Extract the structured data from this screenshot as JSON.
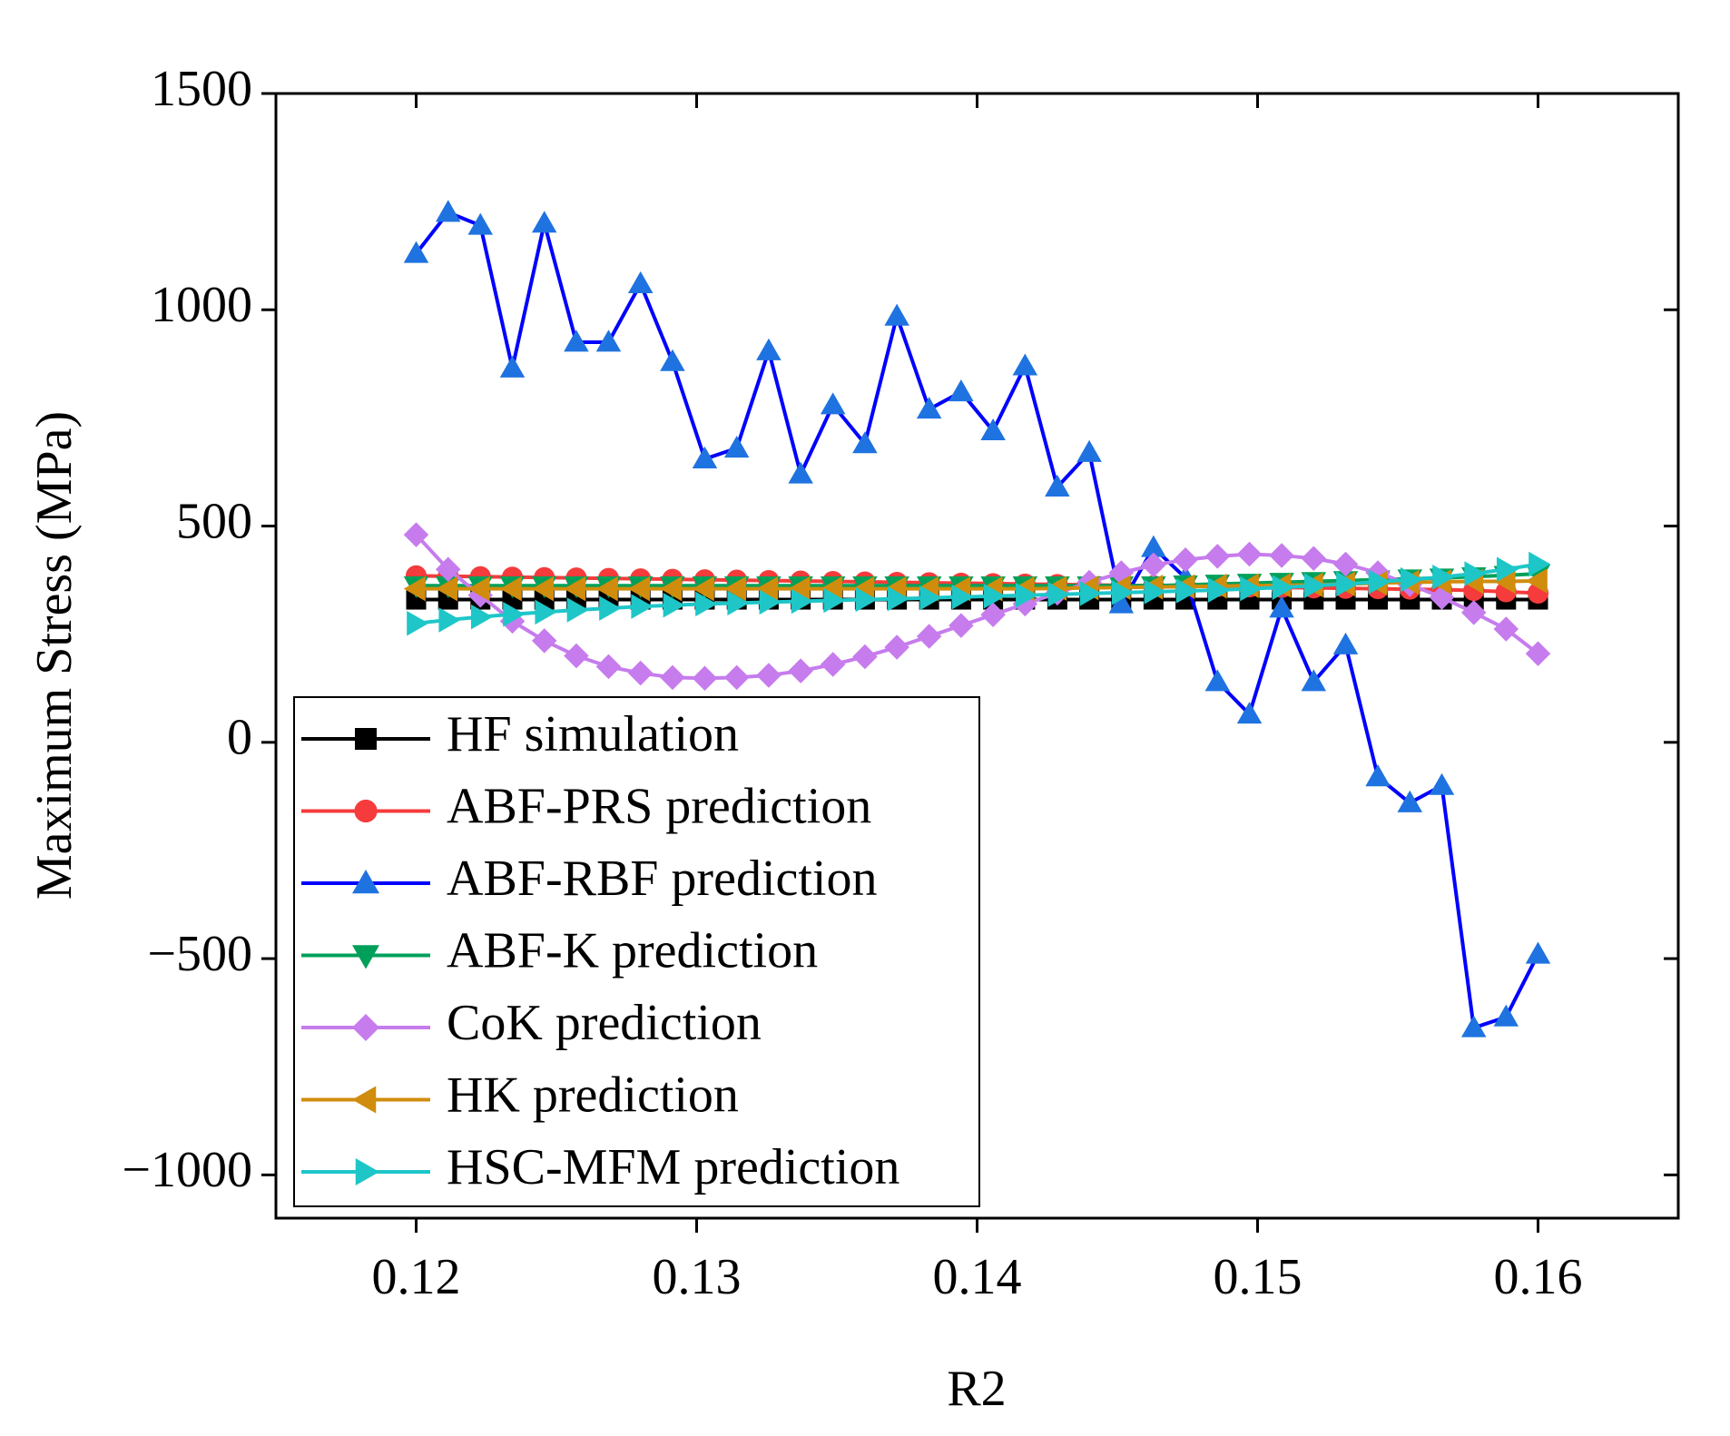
{
  "chart_data": {
    "type": "line",
    "x_label": "R2",
    "y_label": "Maximum Stress (MPa)",
    "xlim": [
      0.115,
      0.165
    ],
    "ylim": [
      -1100,
      1500
    ],
    "xticks": [
      0.12,
      0.13,
      0.14,
      0.15,
      0.16
    ],
    "yticks": [
      {
        "value": -1000,
        "label": "−1000"
      },
      {
        "value": -500,
        "label": "−500"
      },
      0,
      500,
      1000,
      1500
    ],
    "legend": "lower left",
    "x": [
      0.12,
      0.12114,
      0.12229,
      0.12343,
      0.12457,
      0.12571,
      0.12686,
      0.128,
      0.12914,
      0.13029,
      0.13143,
      0.13257,
      0.13371,
      0.13486,
      0.136,
      0.13714,
      0.13829,
      0.13943,
      0.14057,
      0.14171,
      0.14286,
      0.144,
      0.14514,
      0.14629,
      0.14743,
      0.14857,
      0.14971,
      0.15086,
      0.152,
      0.15314,
      0.15429,
      0.15543,
      0.15657,
      0.15771,
      0.15886,
      0.16
    ],
    "series": [
      {
        "name": "HF simulation",
        "color": "#000000",
        "marker": "square",
        "values": [
          330,
          330,
          330,
          330,
          330,
          330,
          330,
          330,
          330,
          330,
          330,
          330,
          330,
          330,
          330,
          330,
          330,
          330,
          330,
          330,
          330,
          330,
          330,
          330,
          330,
          330,
          330,
          330,
          330,
          330,
          330,
          330,
          330,
          330,
          330,
          330
        ]
      },
      {
        "name": "ABF-PRS prediction",
        "color": "#f53b3b",
        "marker": "circle",
        "values": [
          385,
          384,
          383,
          382,
          381,
          380,
          379,
          378,
          377,
          376,
          375,
          374,
          373,
          372,
          371,
          370,
          369,
          368,
          367,
          366,
          365,
          364,
          363,
          362,
          361,
          360,
          359,
          358,
          357,
          356,
          355,
          354,
          353,
          351,
          348,
          345
        ]
      },
      {
        "name": "ABF-RBF prediction",
        "color": "#0000ff",
        "marker_color": "#1f73e0",
        "marker": "triangle-up",
        "values": [
          1130,
          1225,
          1195,
          865,
          1200,
          925,
          925,
          1060,
          880,
          655,
          680,
          905,
          620,
          780,
          690,
          985,
          770,
          810,
          720,
          870,
          590,
          670,
          320,
          450,
          380,
          140,
          65,
          310,
          140,
          225,
          -80,
          -140,
          -100,
          -660,
          -635,
          -490
        ]
      },
      {
        "name": "ABF-K prediction",
        "color": "#00a05a",
        "marker": "triangle-down",
        "values": [
          362,
          362,
          362,
          362,
          362,
          362,
          362,
          362,
          362,
          362,
          362,
          362,
          362,
          362,
          362,
          362,
          362,
          362,
          362,
          362,
          362,
          362,
          362,
          362,
          364,
          366,
          368,
          370,
          372,
          374,
          376,
          378,
          380,
          383,
          386,
          390
        ]
      },
      {
        "name": "CoK prediction",
        "color": "#c67ced",
        "marker": "diamond",
        "values": [
          480,
          400,
          340,
          280,
          235,
          200,
          175,
          160,
          150,
          148,
          150,
          155,
          165,
          180,
          198,
          220,
          245,
          270,
          295,
          320,
          345,
          370,
          392,
          410,
          422,
          430,
          435,
          432,
          425,
          412,
          392,
          365,
          335,
          300,
          262,
          205
        ]
      },
      {
        "name": "HK prediction",
        "color": "#d08c0c",
        "marker": "triangle-left",
        "values": [
          355,
          355,
          355,
          355,
          355,
          355,
          355,
          355,
          355,
          355,
          355,
          355,
          355,
          355,
          355,
          355,
          355,
          355,
          355,
          355,
          356,
          357,
          358,
          359,
          360,
          361,
          362,
          363,
          364,
          366,
          368,
          370,
          371,
          372,
          372,
          373
        ]
      },
      {
        "name": "HSC-MFM prediction",
        "color": "#1ec6c8",
        "marker": "triangle-right",
        "values": [
          275,
          283,
          290,
          296,
          301,
          306,
          310,
          314,
          317,
          320,
          322,
          324,
          326,
          328,
          330,
          332,
          334,
          336,
          338,
          340,
          342,
          344,
          346,
          348,
          350,
          352,
          355,
          358,
          362,
          366,
          371,
          376,
          382,
          390,
          400,
          412
        ]
      }
    ]
  }
}
